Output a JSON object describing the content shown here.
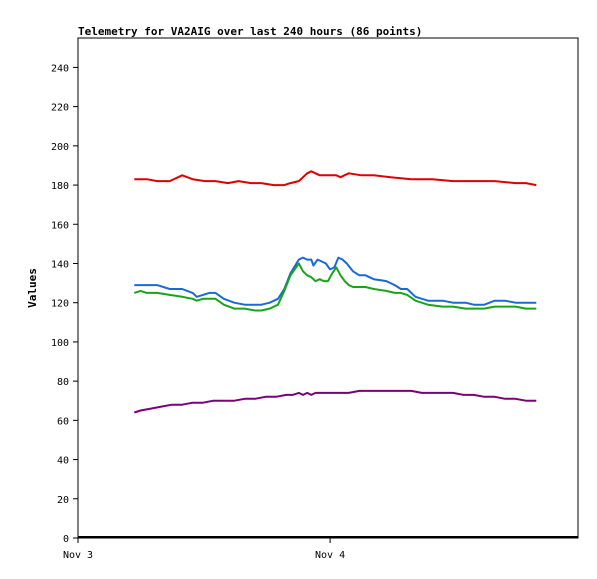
{
  "chart_data": {
    "type": "line",
    "title": "Telemetry for VA2AIG over last 240 hours (86 points)",
    "ylabel": "Values",
    "xlabel": "",
    "ylim": [
      0,
      255
    ],
    "yticks": [
      0,
      20,
      40,
      60,
      80,
      100,
      120,
      140,
      160,
      180,
      200,
      220,
      240
    ],
    "xlim": [
      0,
      240
    ],
    "xticks": [
      {
        "x": 0,
        "label": "Nov 3"
      },
      {
        "x": 121,
        "label": "Nov 4"
      }
    ],
    "grid": false,
    "legend": "none",
    "series": [
      {
        "color": "#dd0000",
        "x": [
          27,
          33,
          38,
          44,
          50,
          55,
          61,
          66,
          72,
          77,
          83,
          88,
          94,
          99,
          102,
          106,
          108,
          110,
          112,
          116,
          120,
          124,
          126,
          130,
          136,
          142,
          150,
          160,
          170,
          180,
          190,
          200,
          210,
          215,
          220
        ],
        "y": [
          183,
          183,
          182,
          182,
          185,
          183,
          182,
          182,
          181,
          182,
          181,
          181,
          180,
          180,
          181,
          182,
          184,
          186,
          187,
          185,
          185,
          185,
          184,
          186,
          185,
          185,
          184,
          183,
          183,
          182,
          182,
          182,
          181,
          181,
          180
        ]
      },
      {
        "color": "#1a6ad6",
        "x": [
          27,
          33,
          38,
          44,
          50,
          55,
          57,
          60,
          63,
          66,
          70,
          75,
          80,
          85,
          88,
          92,
          96,
          99,
          102,
          106,
          108,
          110,
          112,
          113,
          115,
          117,
          119,
          121,
          123,
          125,
          127,
          129,
          132,
          135,
          138,
          142,
          148,
          152,
          155,
          158,
          162,
          168,
          175,
          180,
          186,
          190,
          195,
          200,
          205,
          210,
          215,
          220
        ],
        "y": [
          129,
          129,
          129,
          127,
          127,
          125,
          123,
          124,
          125,
          125,
          122,
          120,
          119,
          119,
          119,
          120,
          122,
          127,
          135,
          142,
          143,
          142,
          142,
          139,
          142,
          141,
          140,
          137,
          138,
          143,
          142,
          140,
          136,
          134,
          134,
          132,
          131,
          129,
          127,
          127,
          123,
          121,
          121,
          120,
          120,
          119,
          119,
          121,
          121,
          120,
          120,
          120
        ]
      },
      {
        "color": "#1aa31a",
        "x": [
          27,
          30,
          33,
          38,
          44,
          50,
          55,
          57,
          60,
          63,
          66,
          70,
          75,
          80,
          85,
          88,
          92,
          96,
          99,
          102,
          106,
          108,
          110,
          112,
          114,
          116,
          118,
          120,
          122,
          124,
          126,
          128,
          130,
          132,
          135,
          138,
          142,
          148,
          152,
          155,
          158,
          162,
          168,
          175,
          180,
          186,
          190,
          195,
          200,
          205,
          210,
          215,
          220
        ],
        "y": [
          125,
          126,
          125,
          125,
          124,
          123,
          122,
          121,
          122,
          122,
          122,
          119,
          117,
          117,
          116,
          116,
          117,
          119,
          126,
          134,
          140,
          136,
          134,
          133,
          131,
          132,
          131,
          131,
          135,
          138,
          134,
          131,
          129,
          128,
          128,
          128,
          127,
          126,
          125,
          125,
          124,
          121,
          119,
          118,
          118,
          117,
          117,
          117,
          118,
          118,
          118,
          117,
          117
        ]
      },
      {
        "color": "#7a007a",
        "x": [
          27,
          30,
          35,
          40,
          45,
          50,
          55,
          60,
          65,
          70,
          75,
          80,
          85,
          90,
          95,
          100,
          103,
          106,
          108,
          110,
          112,
          114,
          116,
          120,
          125,
          130,
          135,
          140,
          145,
          150,
          155,
          160,
          165,
          170,
          175,
          180,
          185,
          190,
          195,
          200,
          205,
          210,
          215,
          220
        ],
        "y": [
          64,
          65,
          66,
          67,
          68,
          68,
          69,
          69,
          70,
          70,
          70,
          71,
          71,
          72,
          72,
          73,
          73,
          74,
          73,
          74,
          73,
          74,
          74,
          74,
          74,
          74,
          75,
          75,
          75,
          75,
          75,
          75,
          74,
          74,
          74,
          74,
          73,
          73,
          72,
          72,
          71,
          71,
          70,
          70
        ]
      }
    ]
  }
}
